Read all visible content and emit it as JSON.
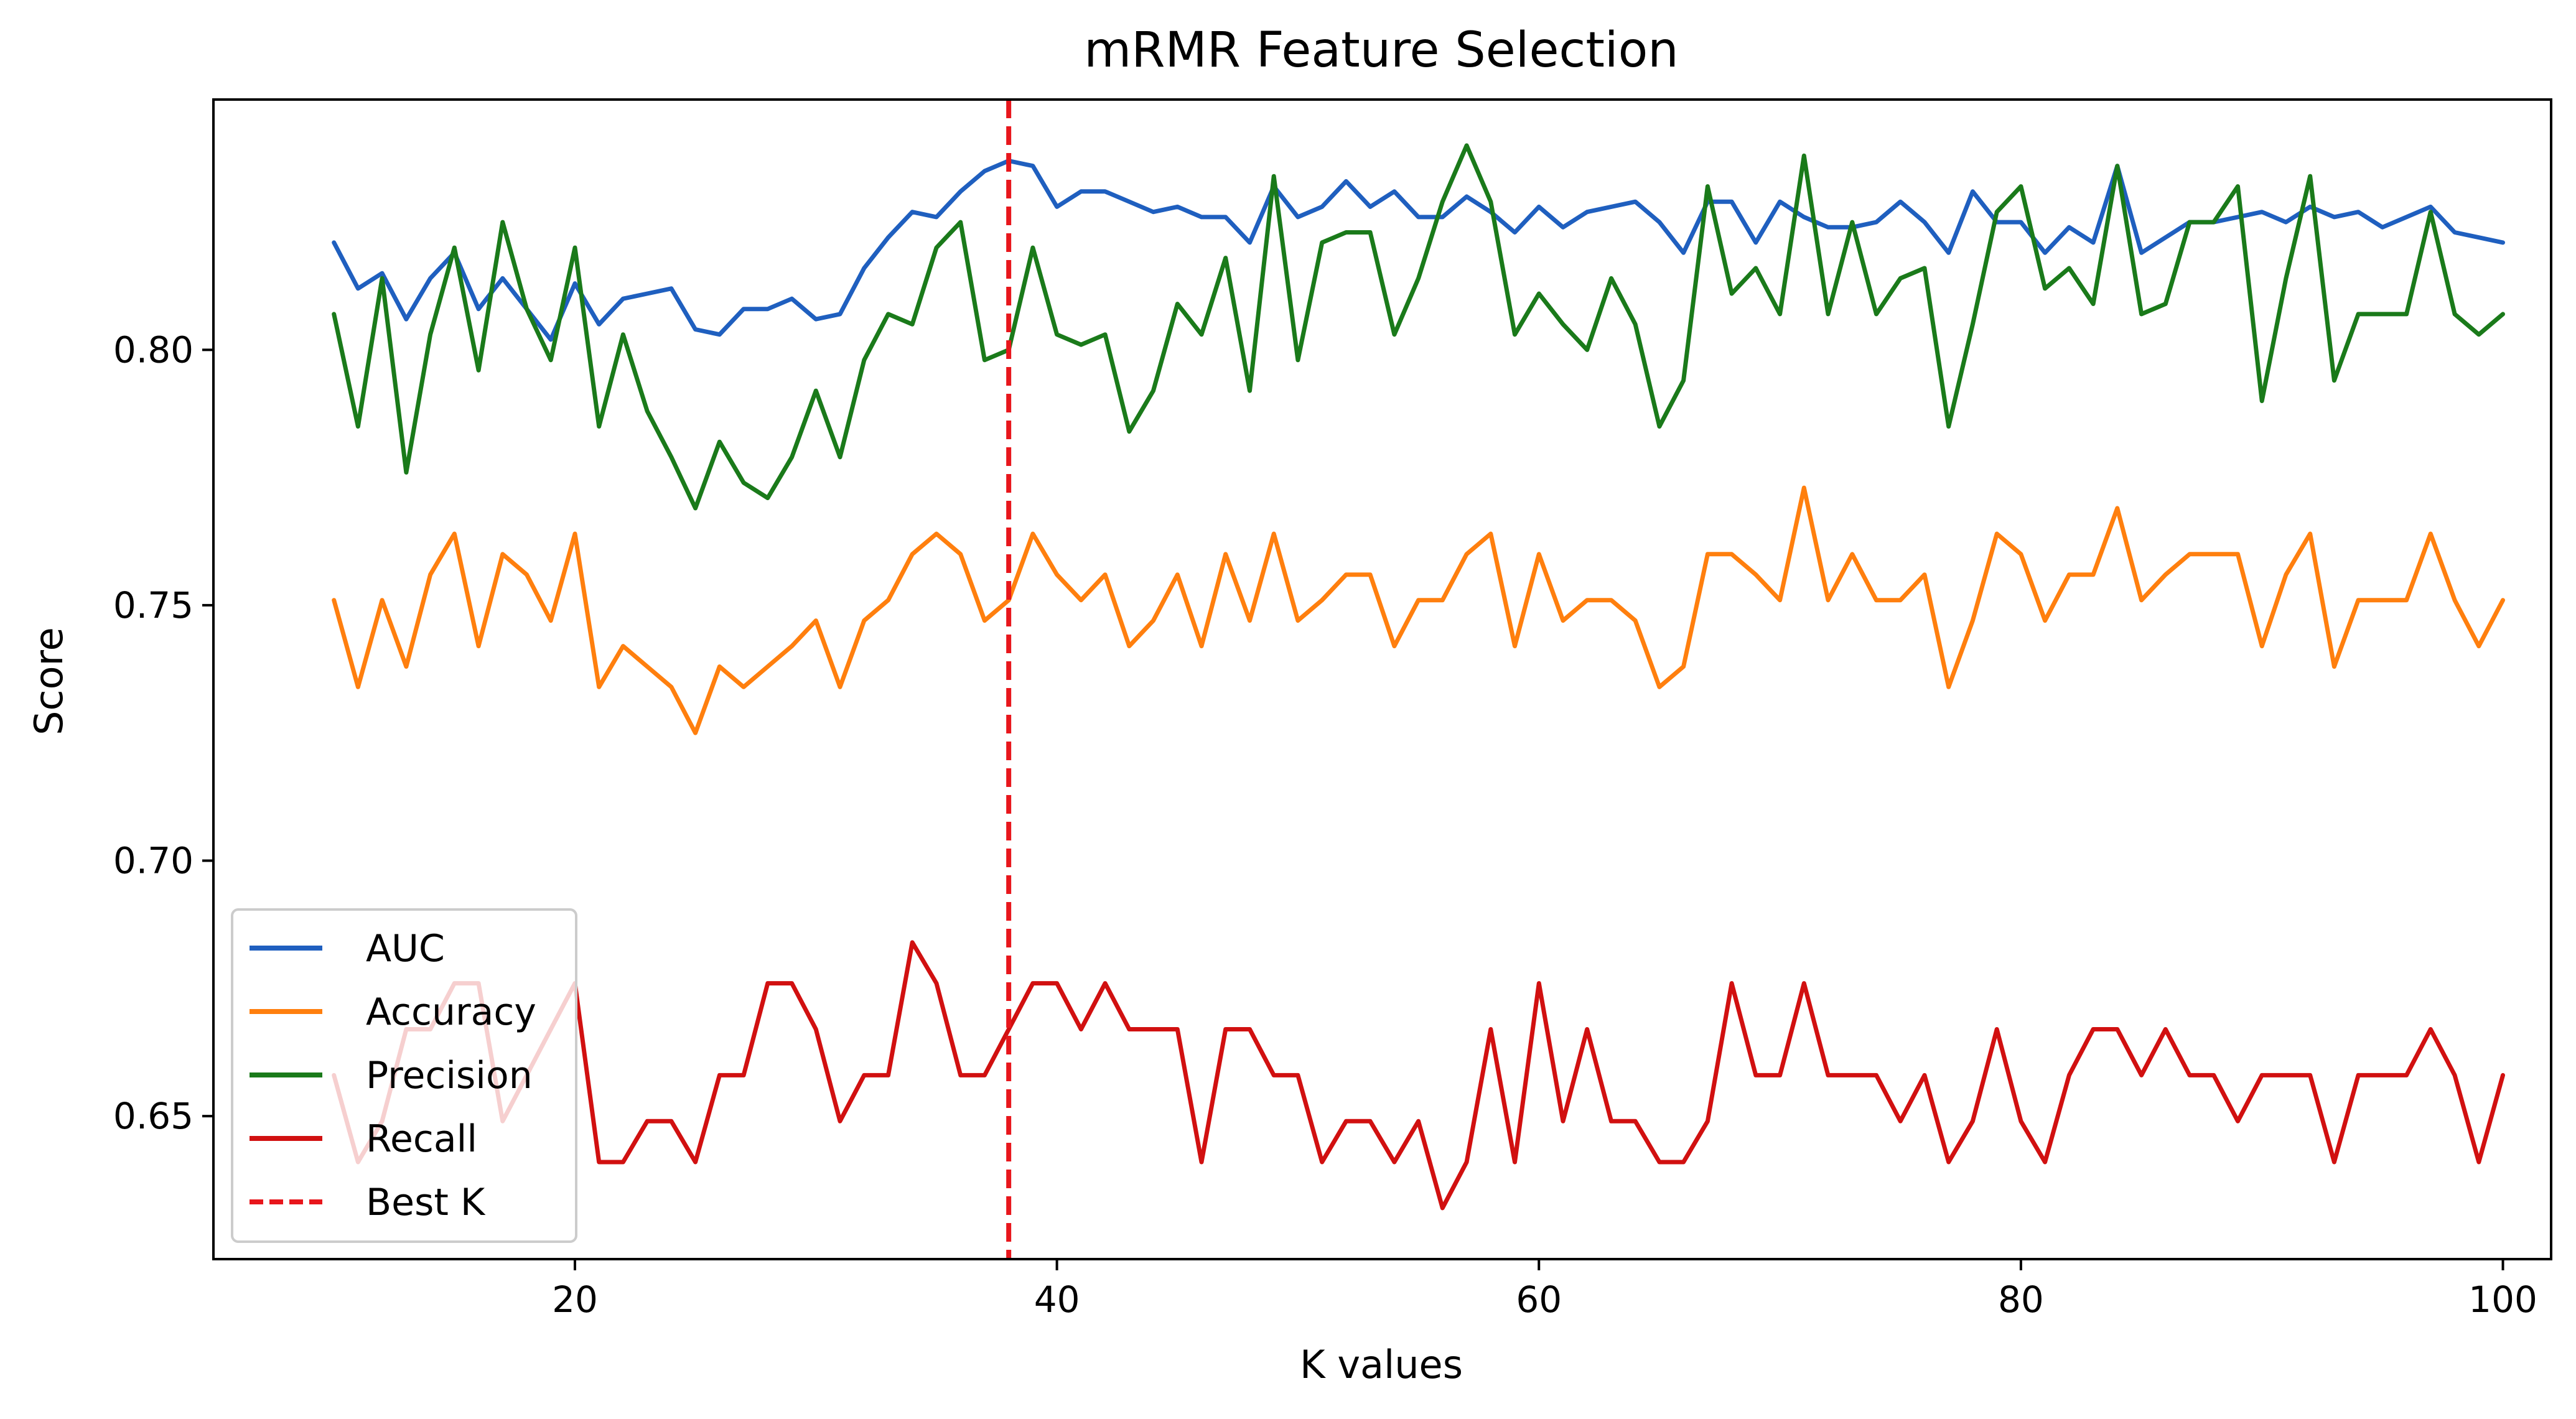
{
  "chart_data": {
    "type": "line",
    "title": "mRMR Feature Selection",
    "xlabel": "K values",
    "ylabel": "Score",
    "xlim": [
      5,
      102
    ],
    "ylim": [
      0.622,
      0.849
    ],
    "xticks": [
      20,
      40,
      60,
      80,
      100
    ],
    "xtick_labels": [
      "20",
      "40",
      "60",
      "80",
      "100"
    ],
    "yticks": [
      0.65,
      0.7,
      0.75,
      0.8
    ],
    "ytick_labels": [
      "0.65",
      "0.70",
      "0.75",
      "0.80"
    ],
    "grid": false,
    "legend_position": "lower-left",
    "x": [
      10,
      11,
      12,
      13,
      14,
      15,
      16,
      17,
      18,
      19,
      20,
      21,
      22,
      23,
      24,
      25,
      26,
      27,
      28,
      29,
      30,
      31,
      32,
      33,
      34,
      35,
      36,
      37,
      38,
      39,
      40,
      41,
      42,
      43,
      44,
      45,
      46,
      47,
      48,
      49,
      50,
      51,
      52,
      53,
      54,
      55,
      56,
      57,
      58,
      59,
      60,
      61,
      62,
      63,
      64,
      65,
      66,
      67,
      68,
      69,
      70,
      71,
      72,
      73,
      74,
      75,
      76,
      77,
      78,
      79,
      80,
      81,
      82,
      83,
      84,
      85,
      86,
      87,
      88,
      89,
      90,
      91,
      92,
      93,
      94,
      95,
      96,
      97,
      98,
      99,
      100
    ],
    "series": [
      {
        "name": "AUC",
        "color": "#1f5fbf",
        "values": [
          0.821,
          0.812,
          0.815,
          0.806,
          0.814,
          0.819,
          0.808,
          0.814,
          0.808,
          0.802,
          0.813,
          0.805,
          0.81,
          0.811,
          0.812,
          0.804,
          0.803,
          0.808,
          0.808,
          0.81,
          0.806,
          0.807,
          0.816,
          0.822,
          0.827,
          0.826,
          0.831,
          0.835,
          0.837,
          0.836,
          0.828,
          0.831,
          0.831,
          0.829,
          0.827,
          0.828,
          0.826,
          0.826,
          0.821,
          0.832,
          0.826,
          0.828,
          0.833,
          0.828,
          0.831,
          0.826,
          0.826,
          0.83,
          0.827,
          0.823,
          0.828,
          0.824,
          0.827,
          0.828,
          0.829,
          0.825,
          0.819,
          0.829,
          0.829,
          0.821,
          0.829,
          0.826,
          0.824,
          0.824,
          0.825,
          0.829,
          0.825,
          0.819,
          0.831,
          0.825,
          0.825,
          0.819,
          0.824,
          0.821,
          0.836,
          0.819,
          0.822,
          0.825,
          0.825,
          0.826,
          0.827,
          0.825,
          0.828,
          0.826,
          0.827,
          0.824,
          0.826,
          0.828,
          0.823,
          0.822,
          0.821
        ]
      },
      {
        "name": "Accuracy",
        "color": "#ff7f0e",
        "values": [
          0.751,
          0.734,
          0.751,
          0.738,
          0.756,
          0.764,
          0.742,
          0.76,
          0.756,
          0.747,
          0.764,
          0.734,
          0.742,
          0.738,
          0.734,
          0.725,
          0.738,
          0.734,
          0.738,
          0.742,
          0.747,
          0.734,
          0.747,
          0.751,
          0.76,
          0.764,
          0.76,
          0.747,
          0.751,
          0.764,
          0.756,
          0.751,
          0.756,
          0.742,
          0.747,
          0.756,
          0.742,
          0.76,
          0.747,
          0.764,
          0.747,
          0.751,
          0.756,
          0.756,
          0.742,
          0.751,
          0.751,
          0.76,
          0.764,
          0.742,
          0.76,
          0.747,
          0.751,
          0.751,
          0.747,
          0.734,
          0.738,
          0.76,
          0.76,
          0.756,
          0.751,
          0.773,
          0.751,
          0.76,
          0.751,
          0.751,
          0.756,
          0.734,
          0.747,
          0.764,
          0.76,
          0.747,
          0.756,
          0.756,
          0.769,
          0.751,
          0.756,
          0.76,
          0.76,
          0.76,
          0.742,
          0.756,
          0.764,
          0.738,
          0.751,
          0.751,
          0.751,
          0.764,
          0.751,
          0.742,
          0.751
        ]
      },
      {
        "name": "Precision",
        "color": "#1a7a1a",
        "values": [
          0.807,
          0.785,
          0.814,
          0.776,
          0.803,
          0.82,
          0.796,
          0.825,
          0.808,
          0.798,
          0.82,
          0.785,
          0.803,
          0.788,
          0.779,
          0.769,
          0.782,
          0.774,
          0.771,
          0.779,
          0.792,
          0.779,
          0.798,
          0.807,
          0.805,
          0.82,
          0.825,
          0.798,
          0.8,
          0.82,
          0.803,
          0.801,
          0.803,
          0.784,
          0.792,
          0.809,
          0.803,
          0.818,
          0.792,
          0.834,
          0.798,
          0.821,
          0.823,
          0.823,
          0.803,
          0.814,
          0.829,
          0.84,
          0.829,
          0.803,
          0.811,
          0.805,
          0.8,
          0.814,
          0.805,
          0.785,
          0.794,
          0.832,
          0.811,
          0.816,
          0.807,
          0.838,
          0.807,
          0.825,
          0.807,
          0.814,
          0.816,
          0.785,
          0.805,
          0.827,
          0.832,
          0.812,
          0.816,
          0.809,
          0.836,
          0.807,
          0.809,
          0.825,
          0.825,
          0.832,
          0.79,
          0.814,
          0.834,
          0.794,
          0.807,
          0.807,
          0.807,
          0.827,
          0.807,
          0.803,
          0.807
        ]
      },
      {
        "name": "Recall",
        "color": "#d11010",
        "values": [
          0.658,
          0.641,
          0.649,
          0.667,
          0.667,
          0.676,
          0.676,
          0.649,
          0.658,
          0.667,
          0.676,
          0.641,
          0.641,
          0.649,
          0.649,
          0.641,
          0.658,
          0.658,
          0.676,
          0.676,
          0.667,
          0.649,
          0.658,
          0.658,
          0.684,
          0.676,
          0.658,
          0.658,
          0.667,
          0.676,
          0.676,
          0.667,
          0.676,
          0.667,
          0.667,
          0.667,
          0.641,
          0.667,
          0.667,
          0.658,
          0.658,
          0.641,
          0.649,
          0.649,
          0.641,
          0.649,
          0.632,
          0.641,
          0.667,
          0.641,
          0.676,
          0.649,
          0.667,
          0.649,
          0.649,
          0.641,
          0.641,
          0.649,
          0.676,
          0.658,
          0.658,
          0.676,
          0.658,
          0.658,
          0.658,
          0.649,
          0.658,
          0.641,
          0.649,
          0.667,
          0.649,
          0.641,
          0.658,
          0.667,
          0.667,
          0.658,
          0.667,
          0.658,
          0.658,
          0.649,
          0.658,
          0.658,
          0.658,
          0.641,
          0.658,
          0.658,
          0.658,
          0.667,
          0.658,
          0.641,
          0.658
        ]
      }
    ],
    "best_k": {
      "name": "Best K",
      "x": 38,
      "color": "#e8161c",
      "style": "dashed"
    }
  }
}
